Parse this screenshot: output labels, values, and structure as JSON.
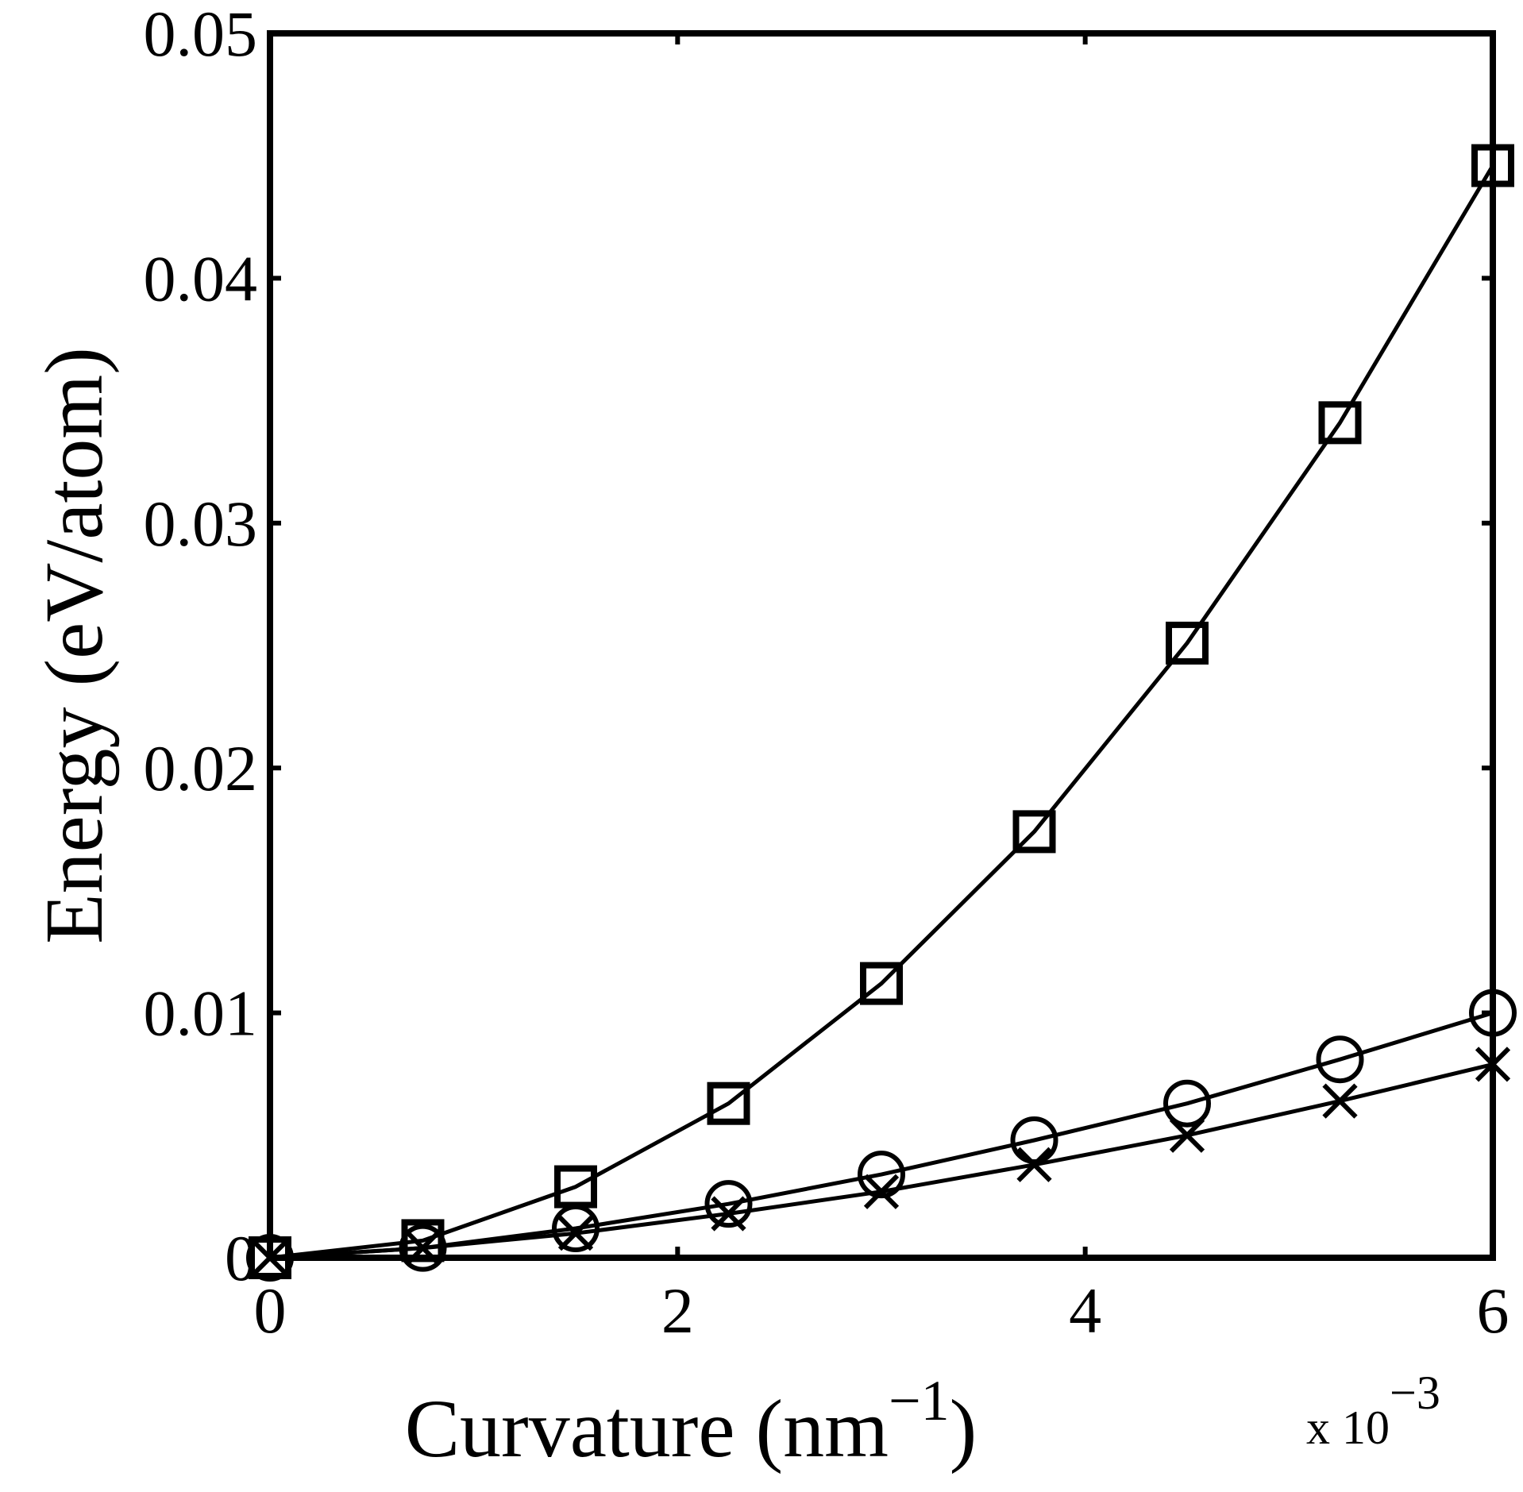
{
  "chart_data": {
    "type": "line",
    "title": "",
    "xlabel": "Curvature (nm",
    "xlabel_superscript": "−1",
    "xlabel_suffix": ")",
    "x_multiplier": "x 10",
    "x_multiplier_exponent": "−3",
    "ylabel": "Energy (eV/atom)",
    "xlim": [
      0,
      6
    ],
    "ylim": [
      0,
      0.05
    ],
    "x_ticks": [
      0,
      2,
      4,
      6
    ],
    "x_tick_labels": [
      "0",
      "2",
      "4",
      "6"
    ],
    "y_ticks": [
      0,
      0.01,
      0.02,
      0.03,
      0.04,
      0.05
    ],
    "y_tick_labels": [
      "0",
      "0.01",
      "0.02",
      "0.03",
      "0.04",
      "0.05"
    ],
    "grid": false,
    "legend": "none",
    "line_color": "#000000",
    "x": [
      0,
      0.75,
      1.5,
      2.25,
      3.0,
      3.75,
      4.5,
      5.25,
      6.0
    ],
    "series": [
      {
        "marker": "square",
        "values": [
          0,
          0.0007,
          0.0029,
          0.0063,
          0.0112,
          0.0174,
          0.0251,
          0.0341,
          0.0446
        ]
      },
      {
        "marker": "circle",
        "values": [
          0,
          0.0004,
          0.0012,
          0.0022,
          0.0034,
          0.0048,
          0.0063,
          0.0081,
          0.01
        ]
      },
      {
        "marker": "x",
        "values": [
          0,
          0.0004,
          0.001,
          0.0018,
          0.0027,
          0.0038,
          0.005,
          0.0064,
          0.0079
        ]
      }
    ]
  }
}
